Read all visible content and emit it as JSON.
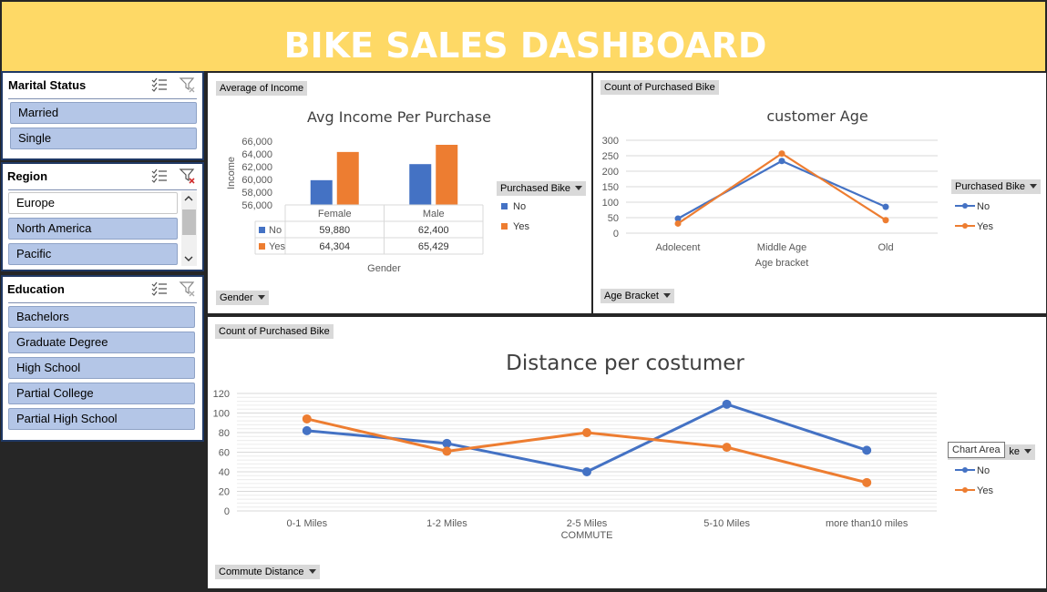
{
  "header": {
    "title": "BIKE SALES DASHBOARD"
  },
  "colors": {
    "header_bg": "#fed966",
    "slicer_selected": "#b4c6e7",
    "series_no": "#4472c4",
    "series_yes": "#ed7d31",
    "background": "#262626"
  },
  "slicers": {
    "marital_status": {
      "title": "Marital Status",
      "items": [
        "Married",
        "Single"
      ]
    },
    "region": {
      "title": "Region",
      "items": [
        "Europe",
        "North America",
        "Pacific"
      ]
    },
    "education": {
      "title": "Education",
      "items": [
        "Bachelors",
        "Graduate Degree",
        "High School",
        "Partial College",
        "Partial High School"
      ]
    }
  },
  "income_panel": {
    "field_button": "Average of Income",
    "axis_button": "Gender",
    "legend_button": "Purchased Bike",
    "table_rows": [
      {
        "label": "No",
        "values": [
          "59,880",
          "62,400"
        ]
      },
      {
        "label": "Yes",
        "values": [
          "64,304",
          "65,429"
        ]
      }
    ]
  },
  "age_panel": {
    "field_button": "Count of Purchased Bike",
    "axis_button": "Age Bracket",
    "legend_button": "Purchased Bike"
  },
  "commute_panel": {
    "field_button": "Count of Purchased Bike",
    "axis_button": "Commute Distance",
    "tooltip": "Chart Area",
    "legend_button_partial": "ke"
  },
  "chart_data": [
    {
      "type": "bar",
      "title": "Avg Income Per Purchase",
      "xlabel": "Gender",
      "ylabel": "Income",
      "categories": [
        "Female",
        "Male"
      ],
      "series": [
        {
          "name": "No",
          "values": [
            59880,
            62400
          ]
        },
        {
          "name": "Yes",
          "values": [
            64304,
            65429
          ]
        }
      ],
      "ylim": [
        56000,
        66000
      ],
      "yticks": [
        "66,000",
        "64,000",
        "62,000",
        "60,000",
        "58,000",
        "56,000"
      ],
      "legend": "right"
    },
    {
      "type": "line",
      "title": "customer Age",
      "xlabel": "Age bracket",
      "ylabel": "",
      "categories": [
        "Adolecent",
        "Middle Age",
        "Old"
      ],
      "series": [
        {
          "name": "No",
          "values": [
            47,
            233,
            85
          ]
        },
        {
          "name": "Yes",
          "values": [
            31,
            257,
            42
          ]
        }
      ],
      "ylim": [
        0,
        300
      ],
      "yticks": [
        "300",
        "250",
        "200",
        "150",
        "100",
        "50",
        "0"
      ],
      "grid": true,
      "legend": "right"
    },
    {
      "type": "line",
      "title": "Distance per costumer",
      "xlabel": "COMMUTE",
      "ylabel": "",
      "categories": [
        "0-1 Miles",
        "1-2 Miles",
        "2-5 Miles",
        "5-10 Miles",
        "more than10 miles"
      ],
      "series": [
        {
          "name": "No",
          "values": [
            82,
            69,
            40,
            109,
            62
          ]
        },
        {
          "name": "Yes",
          "values": [
            94,
            61,
            80,
            65,
            29
          ]
        }
      ],
      "ylim": [
        0,
        120
      ],
      "yticks": [
        "120",
        "100",
        "80",
        "60",
        "40",
        "20",
        "0"
      ],
      "grid": true,
      "legend": "right"
    }
  ]
}
